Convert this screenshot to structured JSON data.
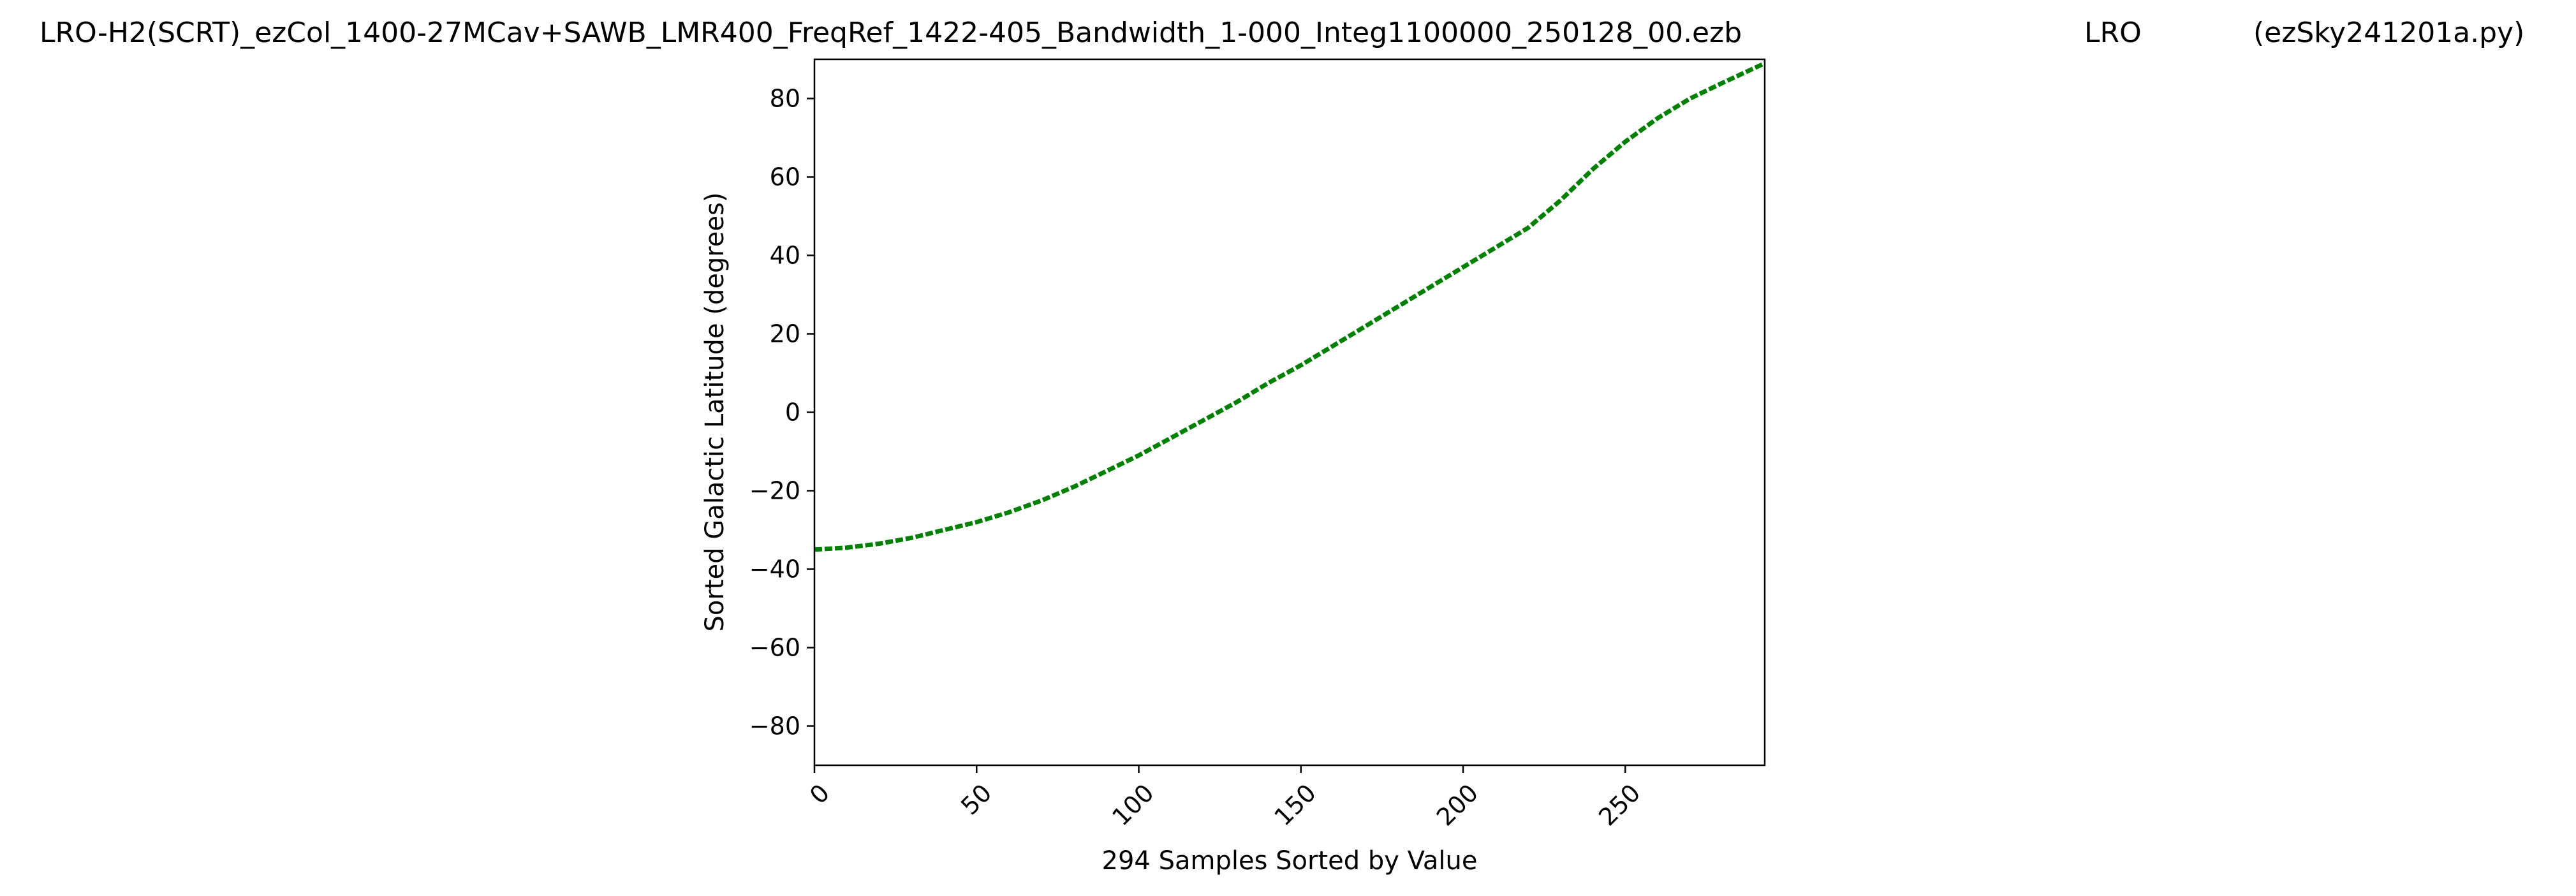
{
  "header": {
    "filename": "LRO-H2(SCRT)_ezCol_1400-27MCav+SAWB_LMR400_FreqRef_1422-405_Bandwidth_1-000_Integ1100000_250128_00.ezb",
    "site": "LRO",
    "program": "(ezSky241201a.py)"
  },
  "chart_data": {
    "type": "line",
    "title": "LRO-H2(SCRT)_ezCol_1400-27MCav+SAWB_LMR400_FreqRef_1422-405_Bandwidth_1-000_Integ1100000_250128_00.ezb LRO (ezSky241201a.py)",
    "xlabel": "294 Samples Sorted by Value",
    "ylabel": "Sorted Galactic Latitude (degrees)",
    "xlim": [
      0,
      293
    ],
    "ylim": [
      -90,
      90
    ],
    "xticks": [
      0,
      50,
      100,
      150,
      200,
      250
    ],
    "xtick_labels": [
      "0",
      "50",
      "100",
      "150",
      "200",
      "250"
    ],
    "yticks": [
      -80,
      -60,
      -40,
      -20,
      0,
      20,
      40,
      60,
      80
    ],
    "ytick_labels": [
      "−80",
      "−60",
      "−40",
      "−20",
      "0",
      "20",
      "40",
      "60",
      "80"
    ],
    "grid": false,
    "series": [
      {
        "color": "#008000",
        "x": [
          0,
          10,
          20,
          30,
          40,
          50,
          60,
          70,
          80,
          90,
          100,
          110,
          120,
          130,
          140,
          150,
          160,
          170,
          180,
          190,
          200,
          210,
          220,
          230,
          240,
          250,
          260,
          270,
          280,
          293
        ],
        "y": [
          -35,
          -34.5,
          -33.5,
          -32,
          -30,
          -28,
          -25.5,
          -22.5,
          -19,
          -15,
          -11,
          -6.5,
          -2,
          2.5,
          7.5,
          12,
          17,
          22,
          27,
          32,
          37,
          42,
          47,
          54,
          62,
          69,
          75,
          80,
          84,
          89
        ]
      }
    ]
  }
}
